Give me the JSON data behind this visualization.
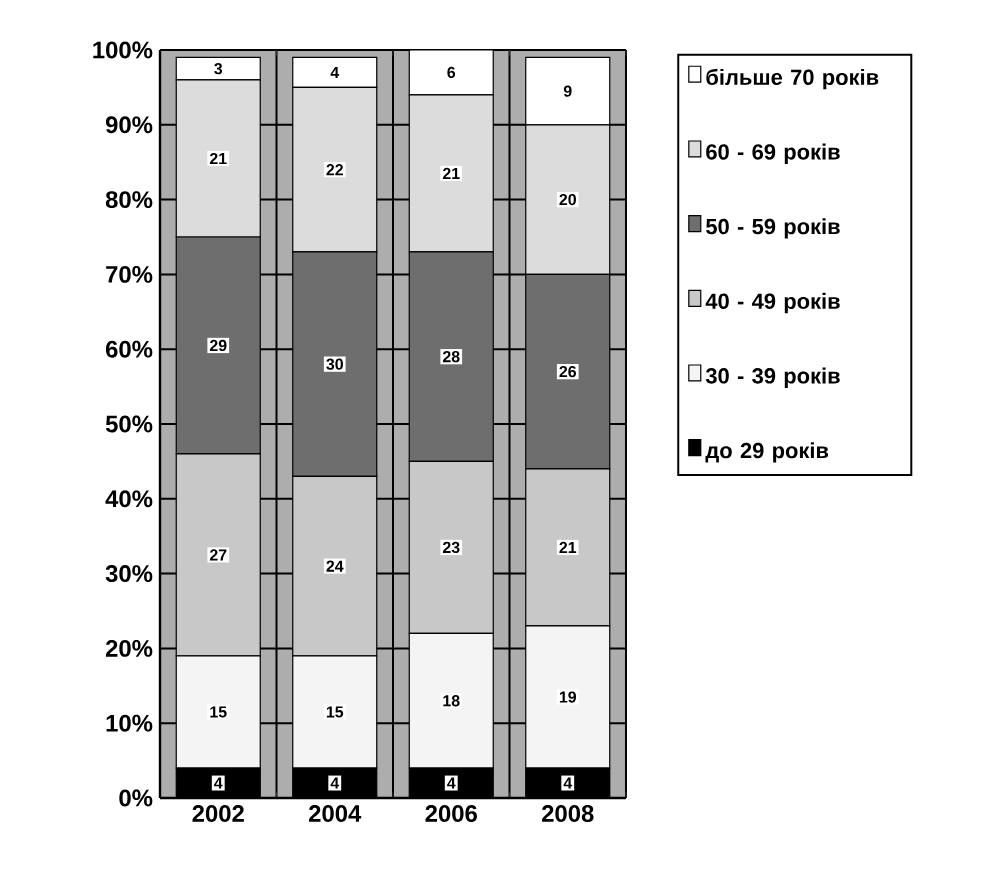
{
  "chart_data": {
    "type": "bar",
    "stacked": true,
    "categories": [
      "2002",
      "2004",
      "2006",
      "2008"
    ],
    "series": [
      {
        "name": "до 29 років",
        "color": "#000000",
        "values": [
          4,
          4,
          4,
          4
        ]
      },
      {
        "name": "30 - 39 років",
        "color": "#f4f4f4",
        "values": [
          15,
          15,
          18,
          19
        ]
      },
      {
        "name": "40 - 49 років",
        "color": "#c8c8c8",
        "values": [
          27,
          24,
          23,
          21
        ]
      },
      {
        "name": "50 - 59 років",
        "color": "#6e6e6e",
        "values": [
          29,
          30,
          28,
          26
        ]
      },
      {
        "name": "60 - 69 років",
        "color": "#dcdcdc",
        "values": [
          21,
          22,
          21,
          20
        ]
      },
      {
        "name": "більше 70 років",
        "color": "#ffffff",
        "values": [
          3,
          4,
          6,
          9
        ]
      }
    ],
    "ylim": [
      0,
      100
    ],
    "yticks": [
      {
        "value": 0,
        "label": "0%"
      },
      {
        "value": 10,
        "label": "10%"
      },
      {
        "value": 20,
        "label": "20%"
      },
      {
        "value": 30,
        "label": "30%"
      },
      {
        "value": 40,
        "label": "40%"
      },
      {
        "value": 50,
        "label": "50%"
      },
      {
        "value": 60,
        "label": "60%"
      },
      {
        "value": 70,
        "label": "70%"
      },
      {
        "value": 80,
        "label": "80%"
      },
      {
        "value": 90,
        "label": "90%"
      },
      {
        "value": 100,
        "label": "100%"
      }
    ],
    "grid": true,
    "legend": "right",
    "data_labels": true
  }
}
